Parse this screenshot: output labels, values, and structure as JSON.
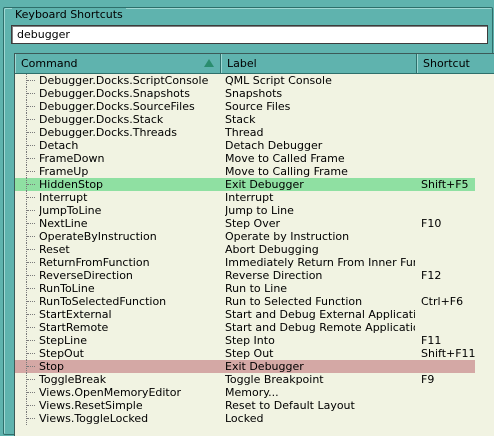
{
  "group_title": "Keyboard Shortcuts",
  "search": {
    "value": "debugger",
    "placeholder": ""
  },
  "columns": {
    "command": "Command",
    "label": "Label",
    "shortcut": "Shortcut"
  },
  "highlight_colors": {
    "green": "#8fe0a2",
    "red": "#d4a8a5"
  },
  "rows": [
    {
      "command": "Debugger.Docks.ScriptConsole",
      "label": "QML Script Console",
      "shortcut": ""
    },
    {
      "command": "Debugger.Docks.Snapshots",
      "label": "Snapshots",
      "shortcut": ""
    },
    {
      "command": "Debugger.Docks.SourceFiles",
      "label": "Source Files",
      "shortcut": ""
    },
    {
      "command": "Debugger.Docks.Stack",
      "label": "Stack",
      "shortcut": ""
    },
    {
      "command": "Debugger.Docks.Threads",
      "label": "Thread",
      "shortcut": ""
    },
    {
      "command": "Detach",
      "label": "Detach Debugger",
      "shortcut": ""
    },
    {
      "command": "FrameDown",
      "label": "Move to Called Frame",
      "shortcut": ""
    },
    {
      "command": "FrameUp",
      "label": "Move to Calling Frame",
      "shortcut": ""
    },
    {
      "command": "HiddenStop",
      "label": "Exit Debugger",
      "shortcut": "Shift+F5",
      "highlight": "green"
    },
    {
      "command": "Interrupt",
      "label": "Interrupt",
      "shortcut": ""
    },
    {
      "command": "JumpToLine",
      "label": "Jump to Line",
      "shortcut": ""
    },
    {
      "command": "NextLine",
      "label": "Step Over",
      "shortcut": "F10"
    },
    {
      "command": "OperateByInstruction",
      "label": "Operate by Instruction",
      "shortcut": ""
    },
    {
      "command": "Reset",
      "label": "Abort Debugging",
      "shortcut": ""
    },
    {
      "command": "ReturnFromFunction",
      "label": "Immediately Return From Inner Function",
      "shortcut": ""
    },
    {
      "command": "ReverseDirection",
      "label": "Reverse Direction",
      "shortcut": "F12"
    },
    {
      "command": "RunToLine",
      "label": "Run to Line",
      "shortcut": ""
    },
    {
      "command": "RunToSelectedFunction",
      "label": "Run to Selected Function",
      "shortcut": "Ctrl+F6"
    },
    {
      "command": "StartExternal",
      "label": "Start and Debug External Application...",
      "shortcut": ""
    },
    {
      "command": "StartRemote",
      "label": "Start and Debug Remote Application...",
      "shortcut": ""
    },
    {
      "command": "StepLine",
      "label": "Step Into",
      "shortcut": "F11"
    },
    {
      "command": "StepOut",
      "label": "Step Out",
      "shortcut": "Shift+F11"
    },
    {
      "command": "Stop",
      "label": "Exit Debugger",
      "shortcut": "",
      "highlight": "red"
    },
    {
      "command": "ToggleBreak",
      "label": "Toggle Breakpoint",
      "shortcut": "F9"
    },
    {
      "command": "Views.OpenMemoryEditor",
      "label": "Memory...",
      "shortcut": ""
    },
    {
      "command": "Views.ResetSimple",
      "label": "Reset to Default Layout",
      "shortcut": ""
    },
    {
      "command": "Views.ToggleLocked",
      "label": "Locked",
      "shortcut": ""
    }
  ]
}
